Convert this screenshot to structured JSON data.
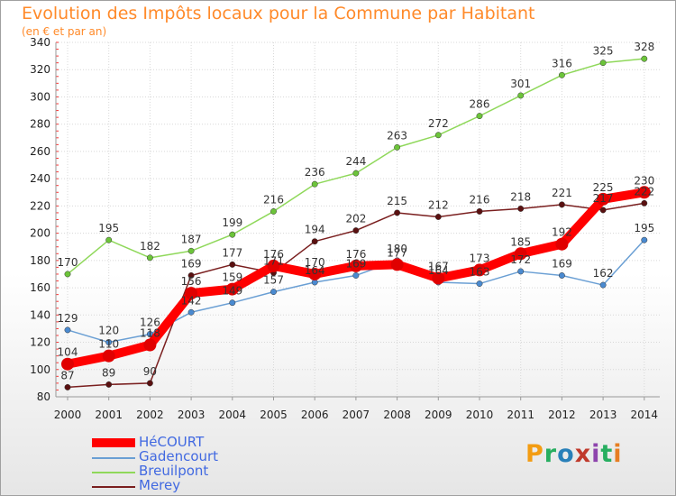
{
  "title": "Evolution des Impôts locaux pour la Commune par Habitant",
  "subtitle": "(en € et par an)",
  "logo": {
    "text": "Proxiti",
    "colors": [
      "#f39c12",
      "#27ae60",
      "#2980b9",
      "#c0392b",
      "#8e44ad",
      "#27ae60",
      "#e67e22"
    ]
  },
  "chart_data": {
    "type": "line",
    "x": [
      "2000",
      "2001",
      "2002",
      "2003",
      "2004",
      "2005",
      "2006",
      "2007",
      "2008",
      "2009",
      "2010",
      "2011",
      "2012",
      "2013",
      "2014"
    ],
    "ylim": [
      80,
      340
    ],
    "yticks": [
      80,
      100,
      120,
      140,
      160,
      180,
      200,
      220,
      240,
      260,
      280,
      300,
      320,
      340
    ],
    "grid": true,
    "legend_position": "bottom-left",
    "series": [
      {
        "name": "Merey",
        "color": "#7a1f1f",
        "marker": "#5a1010",
        "values": [
          87,
          89,
          90,
          169,
          177,
          171,
          194,
          202,
          215,
          212,
          216,
          218,
          221,
          217,
          222
        ],
        "labels_shown": [
          true,
          true,
          true,
          true,
          true,
          true,
          true,
          true,
          true,
          true,
          true,
          true,
          true,
          true,
          true
        ]
      },
      {
        "name": "Breuilpont",
        "color": "#8fd85a",
        "marker": "#6cc43a",
        "values": [
          170,
          195,
          182,
          187,
          199,
          216,
          236,
          244,
          263,
          272,
          286,
          301,
          316,
          325,
          328
        ],
        "labels_shown": [
          true,
          true,
          true,
          true,
          true,
          true,
          true,
          true,
          true,
          true,
          true,
          true,
          true,
          true,
          true
        ]
      },
      {
        "name": "Gadencourt",
        "color": "#6a9fd4",
        "marker": "#4a8ad0",
        "values": [
          129,
          120,
          126,
          142,
          149,
          157,
          164,
          169,
          180,
          164,
          163,
          172,
          169,
          162,
          195
        ],
        "labels_shown": [
          true,
          true,
          true,
          true,
          true,
          true,
          true,
          true,
          true,
          true,
          true,
          true,
          true,
          true,
          true
        ]
      },
      {
        "name": "HéCOURT",
        "color": "#ff0000",
        "marker": "#e00000",
        "values": [
          104,
          110,
          118,
          156,
          159,
          176,
          170,
          176,
          177,
          167,
          173,
          185,
          192,
          225,
          230
        ],
        "labels_shown": [
          true,
          true,
          true,
          true,
          true,
          true,
          true,
          true,
          true,
          true,
          true,
          true,
          true,
          true,
          true
        ]
      }
    ],
    "legend_order": [
      "HéCOURT",
      "Gadencourt",
      "Breuilpont",
      "Merey"
    ]
  }
}
